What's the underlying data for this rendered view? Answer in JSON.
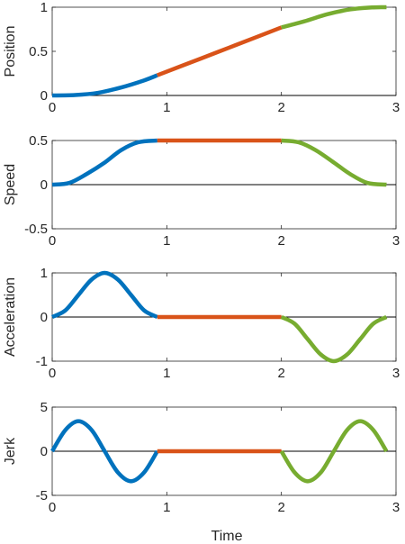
{
  "colors": {
    "seg1": "#0072BD",
    "seg2": "#D95319",
    "seg3": "#77AC30",
    "axis": "#262626"
  },
  "xlabel": "Time",
  "chart_data": [
    {
      "type": "line",
      "ylabel": "Position",
      "xlim": [
        0,
        3
      ],
      "ylim": [
        0,
        1
      ],
      "xticks": [
        0,
        1,
        2,
        3
      ],
      "yticks": [
        0,
        0.5,
        1
      ],
      "xtick_labels": [
        "0",
        "1",
        "2",
        "3"
      ],
      "ytick_labels": [
        "0",
        "0.5",
        "1"
      ],
      "grid": false,
      "series": [
        {
          "x": [
            0,
            0.2,
            0.4,
            0.6,
            0.8,
            0.917
          ],
          "y": [
            0,
            0.005,
            0.03,
            0.09,
            0.17,
            0.229
          ]
        },
        {
          "x": [
            0.917,
            1.3,
            1.6,
            2.0
          ],
          "y": [
            0.229,
            0.42,
            0.57,
            0.771
          ]
        },
        {
          "x": [
            2.0,
            2.2,
            2.4,
            2.6,
            2.8,
            2.917
          ],
          "y": [
            0.771,
            0.84,
            0.92,
            0.975,
            0.998,
            1.0
          ]
        }
      ],
      "reference_line": {
        "y": 0
      }
    },
    {
      "type": "line",
      "ylabel": "Speed",
      "xlim": [
        0,
        3
      ],
      "ylim": [
        -0.5,
        0.5
      ],
      "xticks": [
        0,
        1,
        2,
        3
      ],
      "yticks": [
        -0.5,
        0,
        0.5
      ],
      "xtick_labels": [
        "0",
        "1",
        "2",
        "3"
      ],
      "ytick_labels": [
        "-0.5",
        "0",
        "0.5"
      ],
      "grid": false,
      "series": [
        {
          "x": [
            0,
            0.15,
            0.3,
            0.458,
            0.6,
            0.75,
            0.917
          ],
          "y": [
            0,
            0.02,
            0.12,
            0.25,
            0.39,
            0.48,
            0.5
          ]
        },
        {
          "x": [
            0.917,
            2.0
          ],
          "y": [
            0.5,
            0.5
          ]
        },
        {
          "x": [
            2.0,
            2.15,
            2.3,
            2.458,
            2.6,
            2.75,
            2.917
          ],
          "y": [
            0.5,
            0.48,
            0.39,
            0.25,
            0.12,
            0.02,
            0
          ]
        }
      ],
      "reference_line": {
        "y": 0
      }
    },
    {
      "type": "line",
      "ylabel": "Acceleration",
      "xlim": [
        0,
        3
      ],
      "ylim": [
        -1,
        1
      ],
      "xticks": [
        0,
        1,
        2,
        3
      ],
      "yticks": [
        -1,
        0,
        1
      ],
      "xtick_labels": [
        "0",
        "1",
        "2",
        "3"
      ],
      "ytick_labels": [
        "-1",
        "0",
        "1"
      ],
      "grid": false,
      "series": [
        {
          "x": [
            0,
            0.115,
            0.229,
            0.344,
            0.458,
            0.573,
            0.688,
            0.802,
            0.917
          ],
          "y": [
            0,
            0.15,
            0.5,
            0.85,
            1.0,
            0.85,
            0.5,
            0.15,
            0
          ]
        },
        {
          "x": [
            0.917,
            2.0
          ],
          "y": [
            0,
            0
          ]
        },
        {
          "x": [
            2.0,
            2.115,
            2.229,
            2.344,
            2.458,
            2.573,
            2.688,
            2.802,
            2.917
          ],
          "y": [
            0,
            -0.15,
            -0.5,
            -0.85,
            -1.0,
            -0.85,
            -0.5,
            -0.15,
            0
          ]
        }
      ],
      "reference_line": {
        "y": 0
      }
    },
    {
      "type": "line",
      "ylabel": "Jerk",
      "xlim": [
        0,
        3
      ],
      "ylim": [
        -5,
        5
      ],
      "xticks": [
        0,
        1,
        2,
        3
      ],
      "yticks": [
        -5,
        0,
        5
      ],
      "xtick_labels": [
        "0",
        "1",
        "2",
        "3"
      ],
      "ytick_labels": [
        "-5",
        "0",
        "5"
      ],
      "grid": false,
      "series": [
        {
          "x": [
            0,
            0.115,
            0.229,
            0.344,
            0.458,
            0.573,
            0.688,
            0.802,
            0.917
          ],
          "y": [
            0,
            2.4,
            3.4,
            2.4,
            0,
            -2.4,
            -3.4,
            -2.4,
            0
          ]
        },
        {
          "x": [
            0.917,
            2.0
          ],
          "y": [
            0,
            0
          ]
        },
        {
          "x": [
            2.0,
            2.115,
            2.229,
            2.344,
            2.458,
            2.573,
            2.688,
            2.802,
            2.917
          ],
          "y": [
            0,
            -2.4,
            -3.4,
            -2.4,
            0,
            2.4,
            3.4,
            2.4,
            0
          ]
        }
      ],
      "reference_line": {
        "y": 0
      }
    }
  ]
}
